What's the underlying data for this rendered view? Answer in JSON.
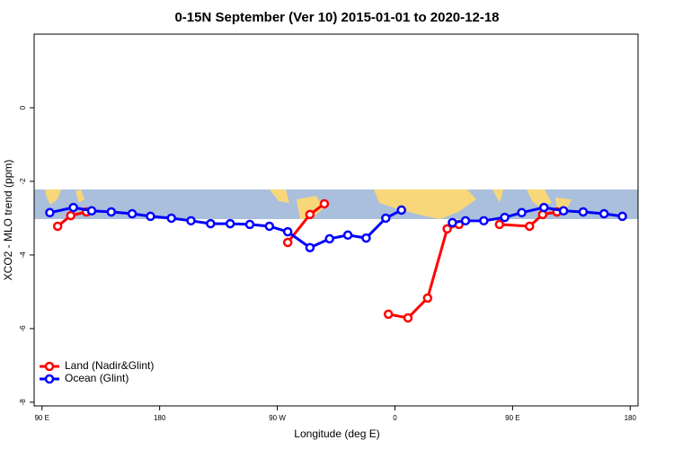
{
  "chart_data": {
    "type": "line",
    "title": "0-15N September (Ver 10)   2015-01-01 to 2020-12-18",
    "x_label": "Longitude (deg E)",
    "y_label": "XCO2 - MLO trend (ppm)",
    "xlim": [
      84,
      546
    ],
    "ylim": [
      -8.1,
      2
    ],
    "xticks": [
      {
        "value": 90,
        "label": "90 E"
      },
      {
        "value": 180,
        "label": "180"
      },
      {
        "value": 270,
        "label": "90 W"
      },
      {
        "value": 360,
        "label": "0"
      },
      {
        "value": 450,
        "label": "90 E"
      },
      {
        "value": 540,
        "label": "180"
      }
    ],
    "yticks": [
      0,
      -2,
      -4,
      -6,
      -8
    ],
    "legend": "bottom-left",
    "series": [
      {
        "name": "Land (Nadir&Glint)",
        "color": "#ff0000",
        "x": [
          102,
          112,
          124,
          null,
          278,
          295,
          306,
          null,
          355,
          370,
          385,
          400,
          409,
          null,
          440,
          463,
          473,
          484
        ],
        "values": [
          -3.22,
          -2.93,
          -2.83,
          null,
          -3.66,
          -2.9,
          -2.61,
          null,
          -5.61,
          -5.71,
          -5.17,
          -3.29,
          -3.17,
          null,
          -3.17,
          -3.22,
          -2.9,
          -2.83
        ]
      },
      {
        "name": "Ocean (Glint)",
        "color": "#0000ff",
        "x": [
          96,
          114,
          128,
          143,
          159,
          173,
          189,
          204,
          219,
          234,
          249,
          264,
          278,
          295,
          310,
          324,
          338,
          353,
          365,
          null,
          404,
          414,
          428,
          444,
          457,
          474,
          489,
          504,
          520,
          534
        ],
        "values": [
          -2.85,
          -2.71,
          -2.8,
          -2.83,
          -2.88,
          -2.95,
          -3.0,
          -3.07,
          -3.15,
          -3.15,
          -3.17,
          -3.22,
          -3.37,
          -3.8,
          -3.56,
          -3.46,
          -3.54,
          -3.0,
          -2.78,
          null,
          -3.12,
          -3.07,
          -3.07,
          -2.98,
          -2.85,
          -2.71,
          -2.8,
          -2.83,
          -2.88,
          -2.95
        ]
      }
    ]
  }
}
